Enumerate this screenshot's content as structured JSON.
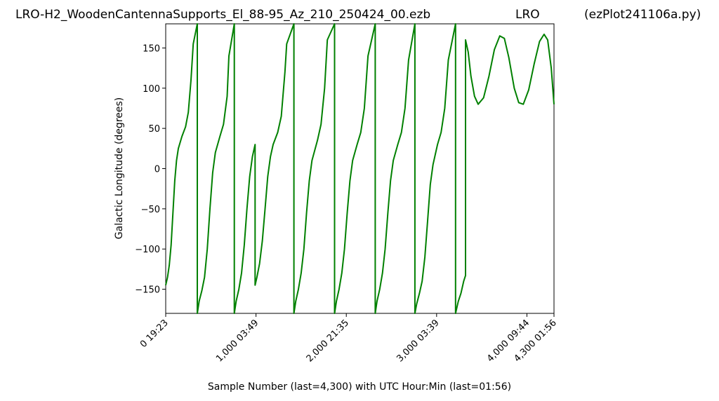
{
  "header": {
    "file_title": "LRO-H2_WoodenCantennaSupports_El_88-95_Az_210_250424_00.ezb",
    "site": "LRO",
    "script_name": "(ezPlot241106a.py)"
  },
  "chart_data": {
    "type": "line",
    "xlabel": "Sample Number (last=4,300) with UTC Hour:Min (last=01:56)",
    "ylabel": "Galactic Longitude (degrees)",
    "xlim": [
      0,
      4300
    ],
    "ylim": [
      -180,
      180
    ],
    "x_ticks": [
      {
        "value": 0,
        "label": "0  19:23"
      },
      {
        "value": 1000,
        "label": "1,000  03:49"
      },
      {
        "value": 2000,
        "label": "2,000  21:35"
      },
      {
        "value": 3000,
        "label": "3,000  03:39"
      },
      {
        "value": 4000,
        "label": "4,000  09:44"
      },
      {
        "value": 4300,
        "label": "4,300  01:56"
      }
    ],
    "y_ticks": [
      {
        "value": -150,
        "label": "−150"
      },
      {
        "value": -100,
        "label": "−100"
      },
      {
        "value": -50,
        "label": "−50"
      },
      {
        "value": 0,
        "label": "0"
      },
      {
        "value": 50,
        "label": "50"
      },
      {
        "value": 100,
        "label": "100"
      },
      {
        "value": 150,
        "label": "150"
      }
    ],
    "grid": false,
    "line_color": "#008000",
    "series": [
      {
        "points": [
          [
            0,
            -145
          ],
          [
            20,
            -135
          ],
          [
            40,
            -120
          ],
          [
            60,
            -95
          ],
          [
            80,
            -55
          ],
          [
            100,
            -15
          ],
          [
            120,
            10
          ],
          [
            140,
            25
          ],
          [
            180,
            40
          ],
          [
            220,
            52
          ],
          [
            250,
            70
          ],
          [
            280,
            110
          ],
          [
            305,
            155
          ],
          [
            350,
            180
          ],
          [
            350,
            -180
          ],
          [
            370,
            -165
          ],
          [
            400,
            -152
          ],
          [
            430,
            -135
          ],
          [
            460,
            -100
          ],
          [
            490,
            -50
          ],
          [
            520,
            -5
          ],
          [
            550,
            20
          ],
          [
            600,
            40
          ],
          [
            640,
            55
          ],
          [
            680,
            90
          ],
          [
            700,
            140
          ],
          [
            760,
            180
          ],
          [
            760,
            -180
          ],
          [
            780,
            -165
          ],
          [
            810,
            -150
          ],
          [
            840,
            -130
          ],
          [
            870,
            -95
          ],
          [
            900,
            -50
          ],
          [
            930,
            -10
          ],
          [
            960,
            15
          ],
          [
            990,
            30
          ],
          [
            990,
            -145
          ],
          [
            1010,
            -135
          ],
          [
            1040,
            -118
          ],
          [
            1070,
            -90
          ],
          [
            1100,
            -50
          ],
          [
            1130,
            -10
          ],
          [
            1160,
            15
          ],
          [
            1190,
            30
          ],
          [
            1240,
            45
          ],
          [
            1280,
            65
          ],
          [
            1320,
            120
          ],
          [
            1340,
            155
          ],
          [
            1420,
            180
          ],
          [
            1420,
            -180
          ],
          [
            1440,
            -165
          ],
          [
            1470,
            -150
          ],
          [
            1500,
            -130
          ],
          [
            1530,
            -100
          ],
          [
            1560,
            -55
          ],
          [
            1590,
            -15
          ],
          [
            1620,
            10
          ],
          [
            1680,
            35
          ],
          [
            1720,
            55
          ],
          [
            1760,
            100
          ],
          [
            1790,
            160
          ],
          [
            1870,
            180
          ],
          [
            1870,
            -180
          ],
          [
            1890,
            -165
          ],
          [
            1920,
            -150
          ],
          [
            1950,
            -130
          ],
          [
            1980,
            -100
          ],
          [
            2010,
            -55
          ],
          [
            2040,
            -15
          ],
          [
            2070,
            10
          ],
          [
            2120,
            30
          ],
          [
            2160,
            45
          ],
          [
            2200,
            75
          ],
          [
            2240,
            140
          ],
          [
            2320,
            180
          ],
          [
            2320,
            -180
          ],
          [
            2340,
            -165
          ],
          [
            2370,
            -150
          ],
          [
            2400,
            -130
          ],
          [
            2430,
            -100
          ],
          [
            2460,
            -55
          ],
          [
            2490,
            -15
          ],
          [
            2520,
            10
          ],
          [
            2570,
            30
          ],
          [
            2610,
            45
          ],
          [
            2650,
            75
          ],
          [
            2690,
            135
          ],
          [
            2760,
            180
          ],
          [
            2760,
            -180
          ],
          [
            2780,
            -168
          ],
          [
            2810,
            -155
          ],
          [
            2840,
            -140
          ],
          [
            2870,
            -110
          ],
          [
            2900,
            -65
          ],
          [
            2930,
            -20
          ],
          [
            2960,
            5
          ],
          [
            3010,
            30
          ],
          [
            3050,
            45
          ],
          [
            3090,
            75
          ],
          [
            3130,
            135
          ],
          [
            3210,
            180
          ],
          [
            3210,
            -180
          ],
          [
            3240,
            -165
          ],
          [
            3270,
            -155
          ],
          [
            3300,
            -140
          ],
          [
            3320,
            -133
          ],
          [
            3320,
            160
          ],
          [
            3350,
            145
          ],
          [
            3380,
            115
          ],
          [
            3420,
            90
          ],
          [
            3460,
            80
          ],
          [
            3520,
            88
          ],
          [
            3580,
            115
          ],
          [
            3640,
            148
          ],
          [
            3700,
            165
          ],
          [
            3750,
            162
          ],
          [
            3800,
            138
          ],
          [
            3860,
            100
          ],
          [
            3910,
            82
          ],
          [
            3960,
            80
          ],
          [
            4020,
            98
          ],
          [
            4080,
            130
          ],
          [
            4140,
            158
          ],
          [
            4190,
            167
          ],
          [
            4230,
            160
          ],
          [
            4270,
            125
          ],
          [
            4300,
            80
          ]
        ]
      }
    ]
  }
}
